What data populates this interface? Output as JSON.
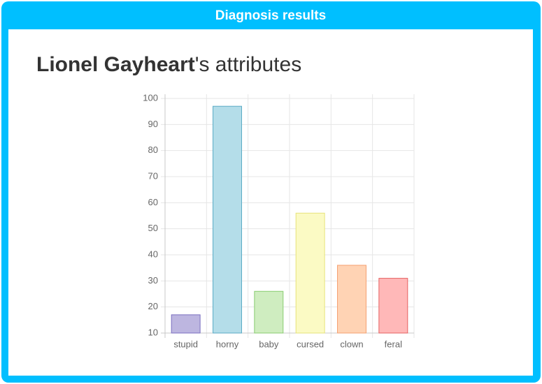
{
  "header": {
    "title": "Diagnosis results"
  },
  "heading": {
    "name": "Lionel Gayheart",
    "suffix": "'s attributes"
  },
  "chart_data": {
    "type": "bar",
    "categories": [
      "stupid",
      "horny",
      "baby",
      "cursed",
      "clown",
      "feral"
    ],
    "values": [
      17,
      97,
      26,
      56,
      36,
      31
    ],
    "colors": [
      "#bdb6e0",
      "#b4dde9",
      "#cfedc0",
      "#fbfac4",
      "#ffd3b4",
      "#ffb8b8"
    ],
    "border_colors": [
      "#7b6fc0",
      "#5aaac5",
      "#88cc70",
      "#e6e37a",
      "#f5a070",
      "#e66060"
    ],
    "ylim": [
      10,
      100
    ],
    "yticks": [
      10,
      20,
      30,
      40,
      50,
      60,
      70,
      80,
      90,
      100
    ],
    "grid": true
  }
}
